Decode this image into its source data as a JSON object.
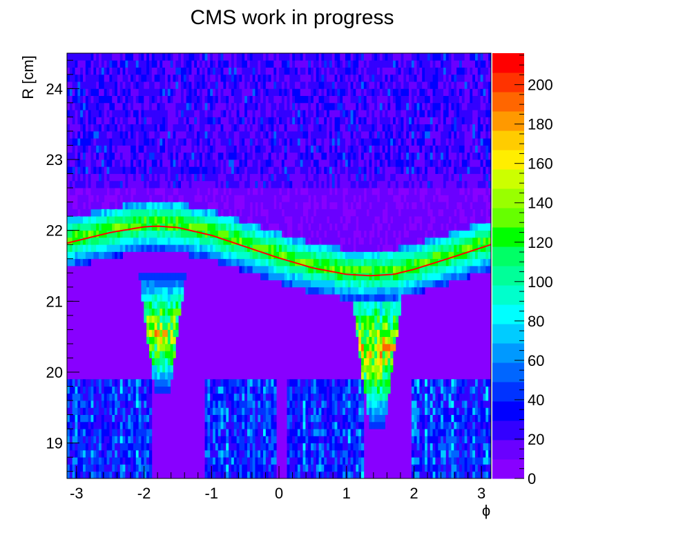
{
  "chart_data": {
    "type": "heatmap",
    "title": "CMS work in progress",
    "xlabel": "ϕ",
    "ylabel": "R [cm]",
    "xlim": [
      -3.1416,
      3.1416
    ],
    "ylim": [
      18.5,
      24.5
    ],
    "x_ticks": [
      -3,
      -2,
      -1,
      0,
      1,
      2,
      3
    ],
    "x_tick_labels": [
      "-3",
      "-2",
      "-1",
      "0",
      "1",
      "2",
      "3"
    ],
    "y_ticks": [
      19,
      20,
      21,
      22,
      23,
      24
    ],
    "y_tick_labels": [
      "19",
      "20",
      "21",
      "22",
      "23",
      "24"
    ],
    "colorbar": {
      "range": [
        0,
        216
      ],
      "ticks": [
        0,
        20,
        40,
        60,
        80,
        100,
        120,
        140,
        160,
        180,
        200
      ],
      "tick_labels": [
        "0",
        "20",
        "40",
        "60",
        "80",
        "100",
        "120",
        "140",
        "160",
        "180",
        "200"
      ],
      "colors": [
        "#8800ff",
        "#6a00ff",
        "#3300ff",
        "#0000ff",
        "#0033ff",
        "#0066ff",
        "#0099ff",
        "#00ccff",
        "#00ffff",
        "#00ffcc",
        "#00ff99",
        "#00ff66",
        "#00ff00",
        "#66ff00",
        "#99ff00",
        "#ccff00",
        "#ffee00",
        "#ffcc00",
        "#ff9900",
        "#ff6600",
        "#ff3300",
        "#ff0000"
      ]
    },
    "fit_curve": {
      "description_type": "sinusoid",
      "color": "#ff0000",
      "x": [
        -3.1416,
        -2.5,
        -2.0,
        -1.8,
        -1.5,
        -1.0,
        -0.5,
        0.0,
        0.5,
        1.0,
        1.35,
        1.7,
        2.0,
        2.5,
        3.1416
      ],
      "y": [
        21.82,
        21.97,
        22.05,
        22.06,
        22.04,
        21.93,
        21.77,
        21.61,
        21.47,
        21.38,
        21.36,
        21.38,
        21.45,
        21.6,
        21.8
      ]
    },
    "hotspots": [
      {
        "phi_center": -1.73,
        "r_range": [
          19.7,
          21.4
        ],
        "peak": 190
      },
      {
        "phi_center": 1.45,
        "r_range": [
          19.2,
          21.4
        ],
        "peak": 200
      }
    ]
  }
}
